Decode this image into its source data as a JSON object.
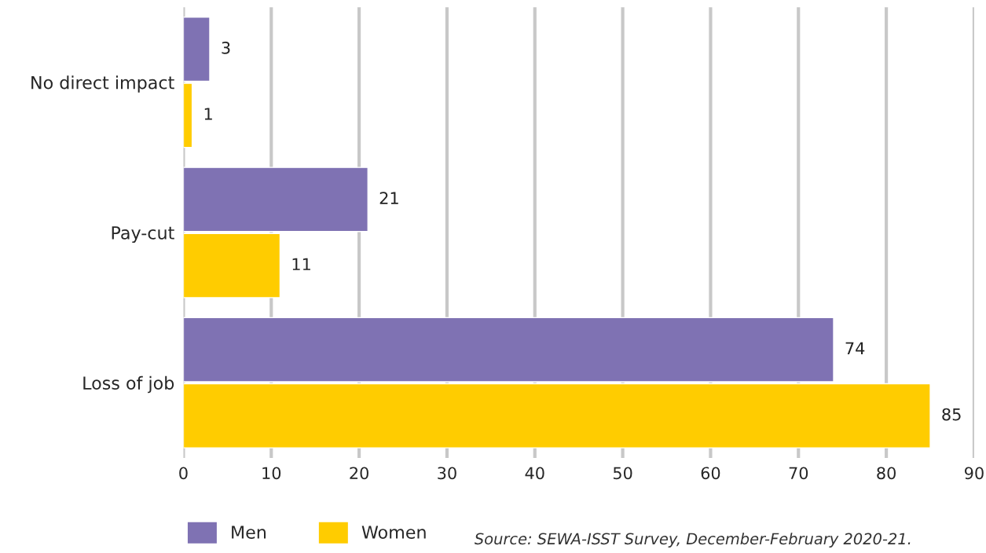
{
  "chart_data": {
    "type": "bar",
    "orientation": "horizontal",
    "categories": [
      "No direct impact",
      "Pay-cut",
      "Loss of job"
    ],
    "series": [
      {
        "name": "Men",
        "color": "#7f72b3",
        "values": [
          3,
          21,
          74
        ]
      },
      {
        "name": "Women",
        "color": "#ffcc00",
        "values": [
          1,
          11,
          85
        ]
      }
    ],
    "xlim": [
      0,
      90
    ],
    "xticks": [
      0,
      10,
      20,
      30,
      40,
      50,
      60,
      70,
      80,
      90
    ],
    "grid": "x",
    "legend": "bottom",
    "data_labels": true,
    "annotations": [
      "Source: SEWA-ISST Survey, December-February 2020-21."
    ]
  }
}
